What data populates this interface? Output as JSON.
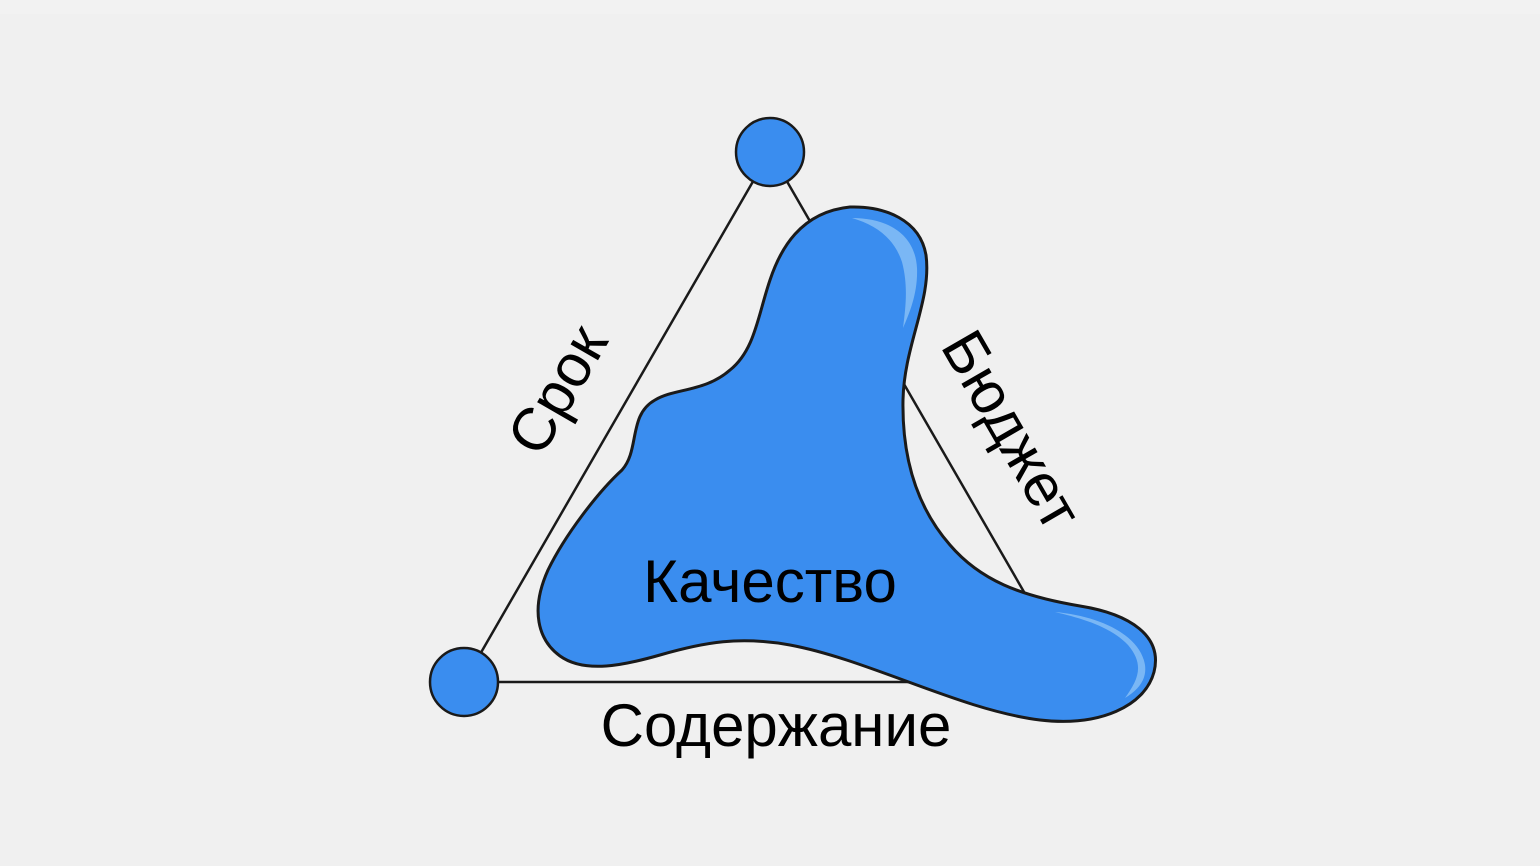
{
  "diagram": {
    "edge_labels": {
      "time": "Срок",
      "budget": "Бюджет",
      "scope": "Содержание"
    },
    "center_label": "Качество"
  },
  "colors": {
    "background": "#f0f0f0",
    "blob_fill": "#3a8def",
    "highlight": "#7ab7f5",
    "stroke": "#1a1a1a"
  }
}
